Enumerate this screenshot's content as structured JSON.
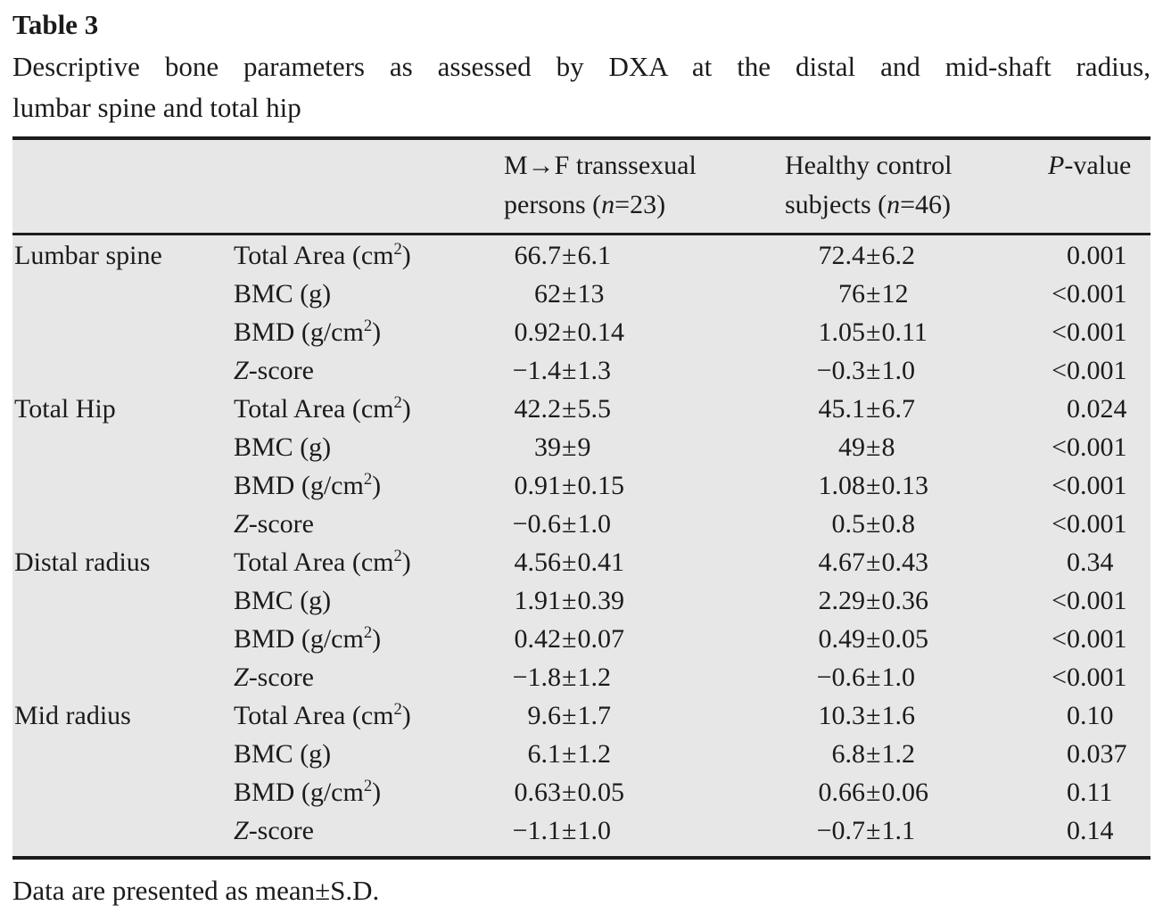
{
  "page": {
    "title": "Table 3",
    "caption_line1": "Descriptive bone parameters as assessed by DXA at the distal and mid-shaft radius,",
    "caption_line2": "lumbar spine and total hip",
    "footnote": "Data are presented as mean±S.D."
  },
  "table": {
    "header": {
      "group_col": "",
      "parameter_col": "",
      "mtf_lines": [
        "M→F transsexual",
        "persons (*n*=23)"
      ],
      "control_lines": [
        "Healthy control",
        "subjects (*n*=46)"
      ],
      "pvalue": "*P*-value"
    },
    "rows": [
      {
        "group": "Lumbar spine",
        "parameter": "Total Area (cm^2^)",
        "mtf": "66.7±6.1",
        "control": "72.4±6.2",
        "p": "0.001"
      },
      {
        "group": "",
        "parameter": "BMC (g)",
        "mtf": "62±13",
        "control": "76±12",
        "p": "<0.001"
      },
      {
        "group": "",
        "parameter": "BMD (g/cm^2^)",
        "mtf": "0.92±0.14",
        "control": "1.05±0.11",
        "p": "<0.001"
      },
      {
        "group": "",
        "parameter": "*Z*-score",
        "mtf": "−1.4±1.3",
        "control": "−0.3±1.0",
        "p": "<0.001"
      },
      {
        "group": "Total Hip",
        "parameter": "Total Area (cm^2^)",
        "mtf": "42.2±5.5",
        "control": "45.1±6.7",
        "p": "0.024"
      },
      {
        "group": "",
        "parameter": "BMC (g)",
        "mtf": "39±9",
        "control": "49±8",
        "p": "<0.001"
      },
      {
        "group": "",
        "parameter": "BMD (g/cm^2^)",
        "mtf": "0.91±0.15",
        "control": "1.08±0.13",
        "p": "<0.001"
      },
      {
        "group": "",
        "parameter": "*Z*-score",
        "mtf": "−0.6±1.0",
        "control": "0.5±0.8",
        "p": "<0.001"
      },
      {
        "group": "Distal radius",
        "parameter": "Total Area (cm^2^)",
        "mtf": "4.56±0.41",
        "control": "4.67±0.43",
        "p": "0.34"
      },
      {
        "group": "",
        "parameter": "BMC (g)",
        "mtf": "1.91±0.39",
        "control": "2.29±0.36",
        "p": "<0.001"
      },
      {
        "group": "",
        "parameter": "BMD (g/cm^2^)",
        "mtf": "0.42±0.07",
        "control": "0.49±0.05",
        "p": "<0.001"
      },
      {
        "group": "",
        "parameter": "*Z*-score",
        "mtf": "−1.8±1.2",
        "control": "−0.6±1.0",
        "p": "<0.001"
      },
      {
        "group": "Mid radius",
        "parameter": "Total Area (cm^2^)",
        "mtf": "9.6±1.7",
        "control": "10.3±1.6",
        "p": "0.10"
      },
      {
        "group": "",
        "parameter": "BMC (g)",
        "mtf": "6.1±1.2",
        "control": "6.8±1.2",
        "p": "0.037"
      },
      {
        "group": "",
        "parameter": "BMD (g/cm^2^)",
        "mtf": "0.63±0.05",
        "control": "0.66±0.06",
        "p": "0.11"
      },
      {
        "group": "",
        "parameter": "*Z*-score",
        "mtf": "−1.1±1.0",
        "control": "−0.7±1.1",
        "p": "0.14"
      }
    ]
  },
  "colors": {
    "table_background": "#e7e7e7",
    "rule": "#1c1c1c",
    "text": "#1b1b1b"
  }
}
